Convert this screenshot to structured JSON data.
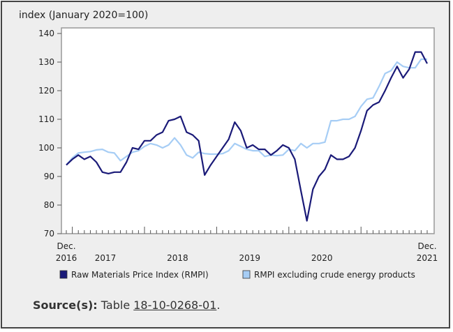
{
  "chart_data": {
    "type": "line",
    "ylabel": "index (January 2020=100)",
    "ylim": [
      70,
      140
    ],
    "yticks": [
      70,
      80,
      90,
      100,
      110,
      120,
      130,
      140
    ],
    "x_start": "2016-12",
    "x_end": "2021-12",
    "x_tick_labels": [
      {
        "month": "2016-12",
        "line1": "Dec.",
        "line2": "2016"
      },
      {
        "month": "2017-06",
        "line1": "",
        "line2": "2017"
      },
      {
        "month": "2018-06",
        "line1": "",
        "line2": "2018"
      },
      {
        "month": "2019-06",
        "line1": "",
        "line2": "2019"
      },
      {
        "month": "2020-06",
        "line1": "",
        "line2": "2020"
      },
      {
        "month": "2021-12",
        "line1": "Dec.",
        "line2": "2021"
      }
    ],
    "grid": false,
    "legend_placement": "bottom",
    "series": [
      {
        "name": "Raw Materials Price Index (RMPI)",
        "color": "#1a1a78",
        "values": [
          94,
          96,
          97.5,
          96,
          97,
          95,
          91.5,
          91,
          91.5,
          91.5,
          95,
          100,
          99.5,
          102.5,
          102.5,
          104.5,
          105.5,
          109.5,
          110,
          111,
          105.5,
          104.5,
          102.5,
          90.5,
          94,
          97,
          100,
          103,
          109,
          106,
          100,
          101,
          99.5,
          99.5,
          97.5,
          99,
          101,
          100,
          96,
          85,
          74.5,
          85.5,
          90,
          92.5,
          97.5,
          96,
          96,
          97,
          100,
          106,
          113,
          115,
          116,
          120,
          124.5,
          128.5,
          124.5,
          127.5,
          133.5,
          133.5,
          129.5
        ]
      },
      {
        "name": "RMPI excluding crude energy products",
        "color": "#a6cdf5",
        "values": [
          94,
          96.5,
          98.2,
          98.5,
          98.7,
          99.3,
          99.5,
          98.5,
          98.2,
          95.5,
          97,
          98.5,
          99,
          100.5,
          101.5,
          101,
          100,
          101,
          103.5,
          101,
          97.5,
          96.5,
          98.5,
          98,
          97.8,
          97.8,
          98,
          99,
          101.5,
          100.5,
          99.5,
          99,
          99,
          97,
          97.5,
          97.3,
          97.5,
          99.5,
          99,
          101.5,
          100,
          101.5,
          101.5,
          102,
          109.5,
          109.5,
          110,
          110,
          111,
          114.5,
          117,
          117.5,
          121.5,
          126,
          127,
          130,
          128.5,
          128,
          128,
          131,
          131
        ]
      }
    ]
  },
  "source": {
    "label": "Source(s):",
    "prefix": "Table",
    "link": "18-10-0268-01",
    "suffix": "."
  }
}
